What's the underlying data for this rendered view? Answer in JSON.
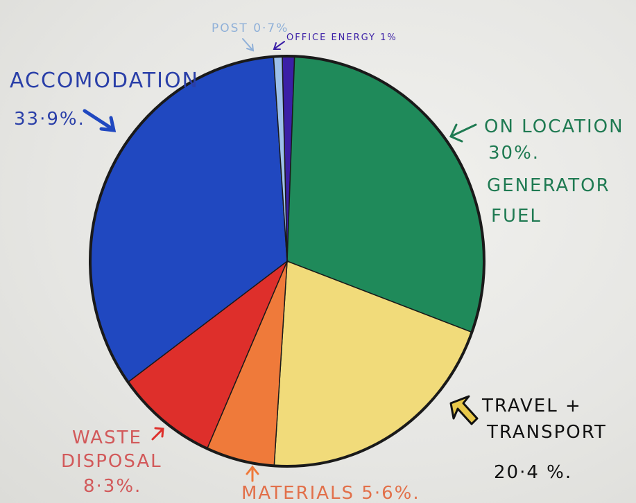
{
  "chart_data": {
    "type": "pie",
    "slices": [
      {
        "label": "OFFICE ENERGY",
        "percent_text": "1%",
        "value": 1.0,
        "color": "#3b1fa6"
      },
      {
        "label": "ON LOCATION GENERATOR FUEL",
        "percent_text": "30%",
        "value": 30.0,
        "color": "#1f8a5a"
      },
      {
        "label": "TRAVEL + TRANSPORT",
        "percent_text": "20·4 %.",
        "value": 20.4,
        "color": "#f1db7a"
      },
      {
        "label": "MATERIALS",
        "percent_text": "5·6%.",
        "value": 5.6,
        "color": "#ef7a3a"
      },
      {
        "label": "WASTE DISPOSAL",
        "percent_text": "8·3%.",
        "value": 8.3,
        "color": "#de2f2b"
      },
      {
        "label": "ACCOMODATION",
        "percent_text": "33·9%.",
        "value": 33.9,
        "color": "#2048c0"
      },
      {
        "label": "POST",
        "percent_text": "0·7%",
        "value": 0.7,
        "color": "#9dc0ea"
      }
    ]
  },
  "labels": {
    "post": "POST 0·7%",
    "office_energy": "OFFICE ENERGY 1%",
    "accomodation_name": "ACCOMODATION",
    "accomodation_pct": "33·9%.",
    "on_location_line1": "ON LOCATION",
    "on_location_line2": "30%.",
    "on_location_line3": "GENERATOR",
    "on_location_line4": "FUEL",
    "travel_line1": "TRAVEL +",
    "travel_line2": "TRANSPORT",
    "travel_pct": "20·4 %.",
    "waste_line1": "WASTE",
    "waste_line2": "DISPOSAL",
    "waste_pct": "8·3%.",
    "materials": "MATERIALS 5·6%."
  },
  "colors": {
    "outline": "#1a1a1a",
    "accomodation_text": "#2a3fa8",
    "green_text": "#1f7a52",
    "post_text": "#8fb0d8",
    "office_text": "#3b1fa6",
    "travel_text": "#111111",
    "waste_text": "#d2595a",
    "materials_text": "#e2704a",
    "travel_arrow_fill": "#e8c84a"
  }
}
